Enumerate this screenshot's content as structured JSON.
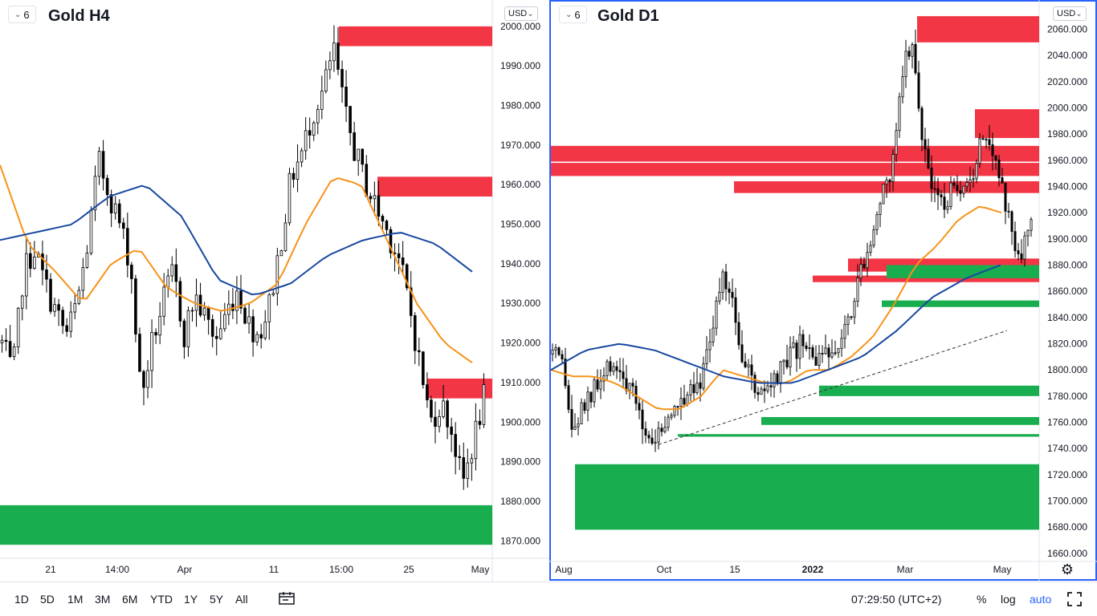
{
  "charts": {
    "left": {
      "interval": "6",
      "title": "Gold H4",
      "currency": "USD",
      "time_labels": [
        "21",
        "14:00",
        "Apr",
        "11",
        "15:00",
        "25",
        "May"
      ]
    },
    "right": {
      "interval": "6",
      "title": "Gold D1",
      "currency": "USD",
      "time_labels": [
        "Aug",
        "Oct",
        "15",
        "2022",
        "Mar",
        "May"
      ]
    }
  },
  "bottom_bar": {
    "ranges": [
      "1D",
      "5D",
      "1M",
      "3M",
      "6M",
      "YTD",
      "1Y",
      "5Y",
      "All"
    ],
    "clock": "07:29:50 (UTC+2)",
    "percent_label": "%",
    "log_label": "log",
    "auto_label": "auto"
  },
  "colors": {
    "up_candle": "#ffffff",
    "down_candle": "#000000",
    "resistance_zone": "#f23645",
    "support_zone": "#18ad4f",
    "ma_fast": "#f7931a",
    "ma_slow": "#1848a0",
    "active_border": "#2962ff"
  },
  "chart_data": [
    {
      "type": "candlestick",
      "title": "Gold H4",
      "y_ticks": [
        "1870.000",
        "1880.000",
        "1890.000",
        "1900.000",
        "1910.000",
        "1920.000",
        "1930.000",
        "1940.000",
        "1950.000",
        "1960.000",
        "1970.000",
        "1980.000",
        "1990.000",
        "2000.000"
      ],
      "ylim": [
        1866,
        2002
      ],
      "x_labels": [
        "21",
        "14:00",
        "Apr",
        "11",
        "15:00",
        "25",
        "May"
      ],
      "close_path": [
        1920,
        1912,
        1938,
        1944,
        1935,
        1928,
        1922,
        1930,
        1945,
        1966,
        1958,
        1950,
        1940,
        1906,
        1920,
        1930,
        1938,
        1922,
        1932,
        1926,
        1921,
        1928,
        1934,
        1925,
        1922,
        1930,
        1945,
        1962,
        1968,
        1978,
        1984,
        1994,
        1978,
        1968,
        1960,
        1954,
        1948,
        1942,
        1930,
        1915,
        1900,
        1905,
        1898,
        1884,
        1895,
        1906
      ],
      "overlays": [
        {
          "name": "resistance",
          "y_from": 1995,
          "y_to": 2000
        },
        {
          "name": "resistance",
          "y_from": 1957,
          "y_to": 1962
        },
        {
          "name": "resistance",
          "y_from": 1906,
          "y_to": 1911
        },
        {
          "name": "support",
          "y_from": 1869,
          "y_to": 1879
        }
      ],
      "ma_fast_path": [
        1965,
        1945,
        1938,
        1930,
        1940,
        1944,
        1934,
        1930,
        1928,
        1930,
        1935,
        1950,
        1962,
        1960,
        1945,
        1930,
        1920,
        1915
      ],
      "ma_slow_path": [
        1946,
        1948,
        1950,
        1957,
        1960,
        1952,
        1936,
        1932,
        1935,
        1942,
        1946,
        1948,
        1945,
        1938
      ]
    },
    {
      "type": "candlestick",
      "title": "Gold D1",
      "y_ticks": [
        "1660.000",
        "1680.000",
        "1700.000",
        "1720.000",
        "1740.000",
        "1760.000",
        "1780.000",
        "1800.000",
        "1820.000",
        "1840.000",
        "1860.000",
        "1880.000",
        "1900.000",
        "1920.000",
        "1940.000",
        "1960.000",
        "1980.000",
        "2000.000",
        "2020.000",
        "2040.000",
        "2060.000"
      ],
      "ylim": [
        1655,
        2075
      ],
      "x_labels": [
        "Aug",
        "Oct",
        "15",
        "2022",
        "Mar",
        "May"
      ],
      "close_path": [
        1812,
        1800,
        1750,
        1770,
        1782,
        1790,
        1808,
        1795,
        1780,
        1760,
        1745,
        1755,
        1765,
        1780,
        1790,
        1795,
        1835,
        1868,
        1860,
        1810,
        1790,
        1780,
        1785,
        1800,
        1810,
        1820,
        1812,
        1805,
        1815,
        1830,
        1850,
        1880,
        1905,
        1930,
        1950,
        2030,
        2050,
        1985,
        1940,
        1925,
        1935,
        1930,
        1940,
        1985,
        1975,
        1940,
        1905,
        1890,
        1910
      ],
      "overlays": [
        {
          "name": "resistance",
          "y_from": 2050,
          "y_to": 2070
        },
        {
          "name": "resistance",
          "y_from": 1977,
          "y_to": 1999
        },
        {
          "name": "resistance",
          "y_from": 1959,
          "y_to": 1971
        },
        {
          "name": "resistance",
          "y_from": 1948,
          "y_to": 1958
        },
        {
          "name": "resistance",
          "y_from": 1935,
          "y_to": 1944
        },
        {
          "name": "resistance",
          "y_from": 1875,
          "y_to": 1885
        },
        {
          "name": "resistance",
          "y_from": 1867,
          "y_to": 1872
        },
        {
          "name": "support",
          "y_from": 1870,
          "y_to": 1880
        },
        {
          "name": "support",
          "y_from": 1848,
          "y_to": 1853
        },
        {
          "name": "support",
          "y_from": 1780,
          "y_to": 1788
        },
        {
          "name": "support",
          "y_from": 1758,
          "y_to": 1764
        },
        {
          "name": "support",
          "y_from": 1749,
          "y_to": 1751
        },
        {
          "name": "support",
          "y_from": 1678,
          "y_to": 1728
        }
      ],
      "ma_fast_path": [
        1800,
        1795,
        1795,
        1790,
        1780,
        1770,
        1770,
        1780,
        1800,
        1795,
        1790,
        1790,
        1800,
        1800,
        1810,
        1825,
        1850,
        1880,
        1895,
        1915,
        1925,
        1920
      ],
      "ma_slow_path": [
        1800,
        1815,
        1820,
        1815,
        1805,
        1795,
        1790,
        1790,
        1800,
        1810,
        1830,
        1855,
        1870,
        1880
      ]
    }
  ]
}
